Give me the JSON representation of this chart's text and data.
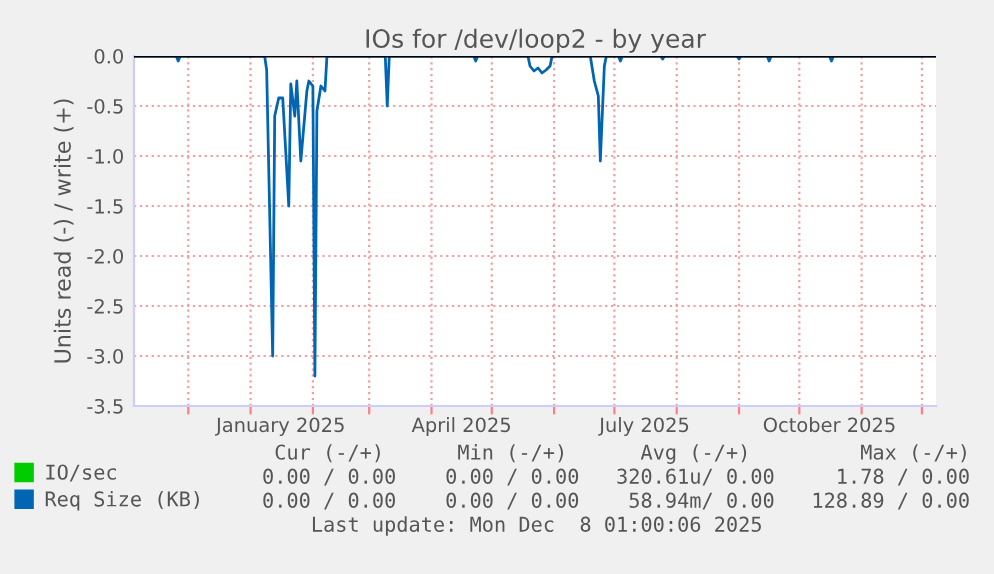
{
  "chart_data": {
    "type": "line",
    "title": "IOs for /dev/loop2 - by year",
    "ylabel": "Units read (-) / write (+)",
    "xlim": [
      "2024-11-04",
      "2025-12-08"
    ],
    "xticks": [
      {
        "value": "2024-12-01",
        "label": null
      },
      {
        "value": "2025-01-01",
        "label": null
      },
      {
        "value": "2025-02-01",
        "label": null
      },
      {
        "value": "2025-03-01",
        "label": null
      },
      {
        "value": "2025-04-01",
        "label": null
      },
      {
        "value": "2025-05-01",
        "label": null
      },
      {
        "value": "2025-06-01",
        "label": null
      },
      {
        "value": "2025-07-01",
        "label": null
      },
      {
        "value": "2025-08-01",
        "label": null
      },
      {
        "value": "2025-09-01",
        "label": null
      },
      {
        "value": "2025-10-01",
        "label": null
      },
      {
        "value": "2025-11-01",
        "label": null
      },
      {
        "value": "2025-12-01",
        "label": null
      },
      {
        "value": "2025-01-16",
        "label": "January 2025"
      },
      {
        "value": "2025-04-16",
        "label": "April 2025"
      },
      {
        "value": "2025-07-16",
        "label": "July 2025"
      },
      {
        "value": "2025-10-16",
        "label": "October 2025"
      }
    ],
    "ylim": [
      -3.5,
      0
    ],
    "yticks": [
      {
        "value": -3.5,
        "label": "-3.5"
      },
      {
        "value": -3,
        "label": "-3.0"
      },
      {
        "value": -2.5,
        "label": "-2.5"
      },
      {
        "value": -2,
        "label": "-2.0"
      },
      {
        "value": -1.5,
        "label": "-1.5"
      },
      {
        "value": -1,
        "label": "-1.0"
      },
      {
        "value": -0.5,
        "label": "-0.5"
      },
      {
        "value": 0,
        "label": "0.0"
      }
    ],
    "grid": true,
    "legend": "bottom left",
    "ref_lines": [
      {
        "axis": "y",
        "value": 0,
        "color": "#000000"
      }
    ],
    "series": [
      {
        "name": "IO/sec",
        "color": "#00cc00"
      },
      {
        "name": "Req Size (KB)",
        "color": "#0066b3",
        "x": [
          "2024-11-04",
          "2024-11-25",
          "2024-11-26",
          "2024-11-27",
          "2025-01-08",
          "2025-01-09",
          "2025-01-12",
          "2025-01-13",
          "2025-01-15",
          "2025-01-17",
          "2025-01-20",
          "2025-01-21",
          "2025-01-23",
          "2025-01-24",
          "2025-01-26",
          "2025-01-29",
          "2025-01-30",
          "2025-02-01",
          "2025-02-02",
          "2025-02-03",
          "2025-02-05",
          "2025-02-07",
          "2025-02-08",
          "2025-03-09",
          "2025-03-10",
          "2025-03-11",
          "2025-04-22",
          "2025-04-23",
          "2025-04-24",
          "2025-05-19",
          "2025-05-20",
          "2025-05-22",
          "2025-05-24",
          "2025-05-26",
          "2025-05-28",
          "2025-05-30",
          "2025-05-31",
          "2025-06-19",
          "2025-06-21",
          "2025-06-23",
          "2025-06-24",
          "2025-06-26",
          "2025-06-27",
          "2025-07-03",
          "2025-07-04",
          "2025-07-05",
          "2025-07-24",
          "2025-07-25",
          "2025-07-26",
          "2025-08-31",
          "2025-09-01",
          "2025-09-02",
          "2025-09-15",
          "2025-09-16",
          "2025-09-17",
          "2025-10-16",
          "2025-10-17",
          "2025-10-18",
          "2025-12-08"
        ],
        "values": [
          0,
          0,
          -0.05,
          0,
          0,
          -0.14,
          -3.0,
          -0.6,
          -0.42,
          -0.42,
          -1.5,
          -0.28,
          -0.6,
          -0.25,
          -1.05,
          -0.35,
          -0.25,
          -0.3,
          -3.2,
          -0.55,
          -0.3,
          -0.35,
          0,
          0,
          -0.5,
          0,
          0,
          -0.05,
          0,
          0,
          -0.1,
          -0.15,
          -0.12,
          -0.17,
          -0.14,
          -0.1,
          0,
          0,
          -0.25,
          -0.4,
          -1.05,
          -0.1,
          0,
          0,
          -0.05,
          0,
          0,
          -0.03,
          0,
          0,
          -0.03,
          0,
          0,
          -0.05,
          0,
          0,
          -0.05,
          0,
          0
        ]
      }
    ],
    "annotations": [
      " Cur (-/+)      Min (-/+)      Avg (-/+)         Max (-/+)",
      "0.00 / 0.00    0.00 / 0.00   320.61u/ 0.00     1.78 / 0.00",
      "0.00 / 0.00    0.00 / 0.00    58.94m/ 0.00   128.89 / 0.00",
      "    Last update: Mon Dec  8 01:00:06 2025"
    ]
  }
}
